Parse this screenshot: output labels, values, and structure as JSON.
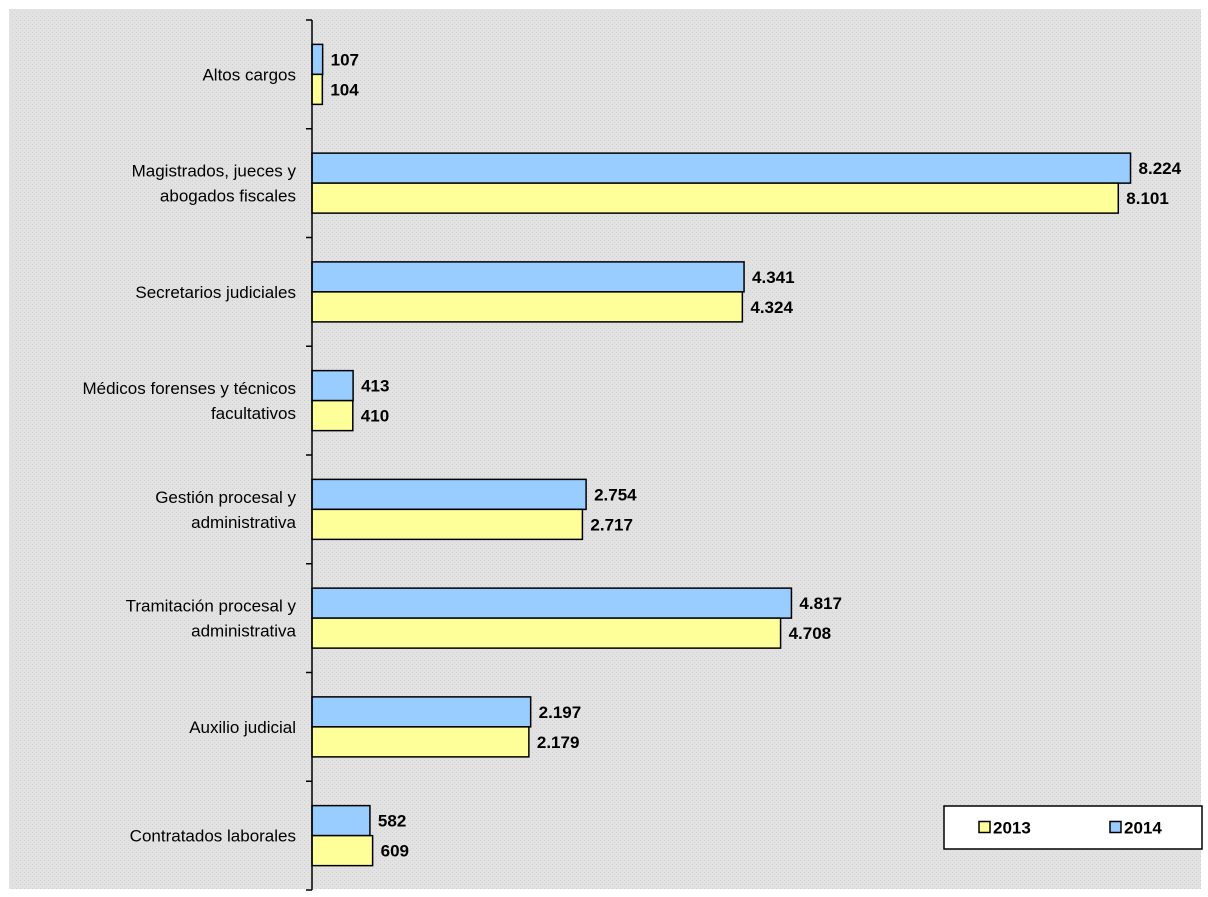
{
  "chart_data": {
    "type": "bar",
    "orientation": "horizontal",
    "categories": [
      [
        "Altos cargos"
      ],
      [
        "Magistrados, jueces y",
        "abogados fiscales"
      ],
      [
        "Secretarios judiciales"
      ],
      [
        "Médicos forenses y técnicos",
        "facultativos"
      ],
      [
        "Gestión procesal y",
        "administrativa"
      ],
      [
        "Tramitación procesal y",
        "administrativa"
      ],
      [
        "Auxilio judicial"
      ],
      [
        "Contratados laborales"
      ]
    ],
    "series": [
      {
        "name": "2014",
        "color": "#99ccff",
        "values": [
          107,
          8224,
          4341,
          413,
          2754,
          4817,
          2197,
          582
        ],
        "labels": [
          "107",
          "8.224",
          "4.341",
          "413",
          "2.754",
          "4.817",
          "2.197",
          "582"
        ]
      },
      {
        "name": "2013",
        "color": "#ffff99",
        "values": [
          104,
          8101,
          4324,
          410,
          2717,
          4708,
          2179,
          609
        ],
        "labels": [
          "104",
          "8.101",
          "4.324",
          "410",
          "2.717",
          "4.708",
          "2.179",
          "609"
        ]
      }
    ],
    "xlim": [
      0,
      8500
    ],
    "grid": false,
    "legend": {
      "position": "bottom-right",
      "order": [
        "2013",
        "2014"
      ]
    },
    "background_color": "#e0e0e0"
  }
}
